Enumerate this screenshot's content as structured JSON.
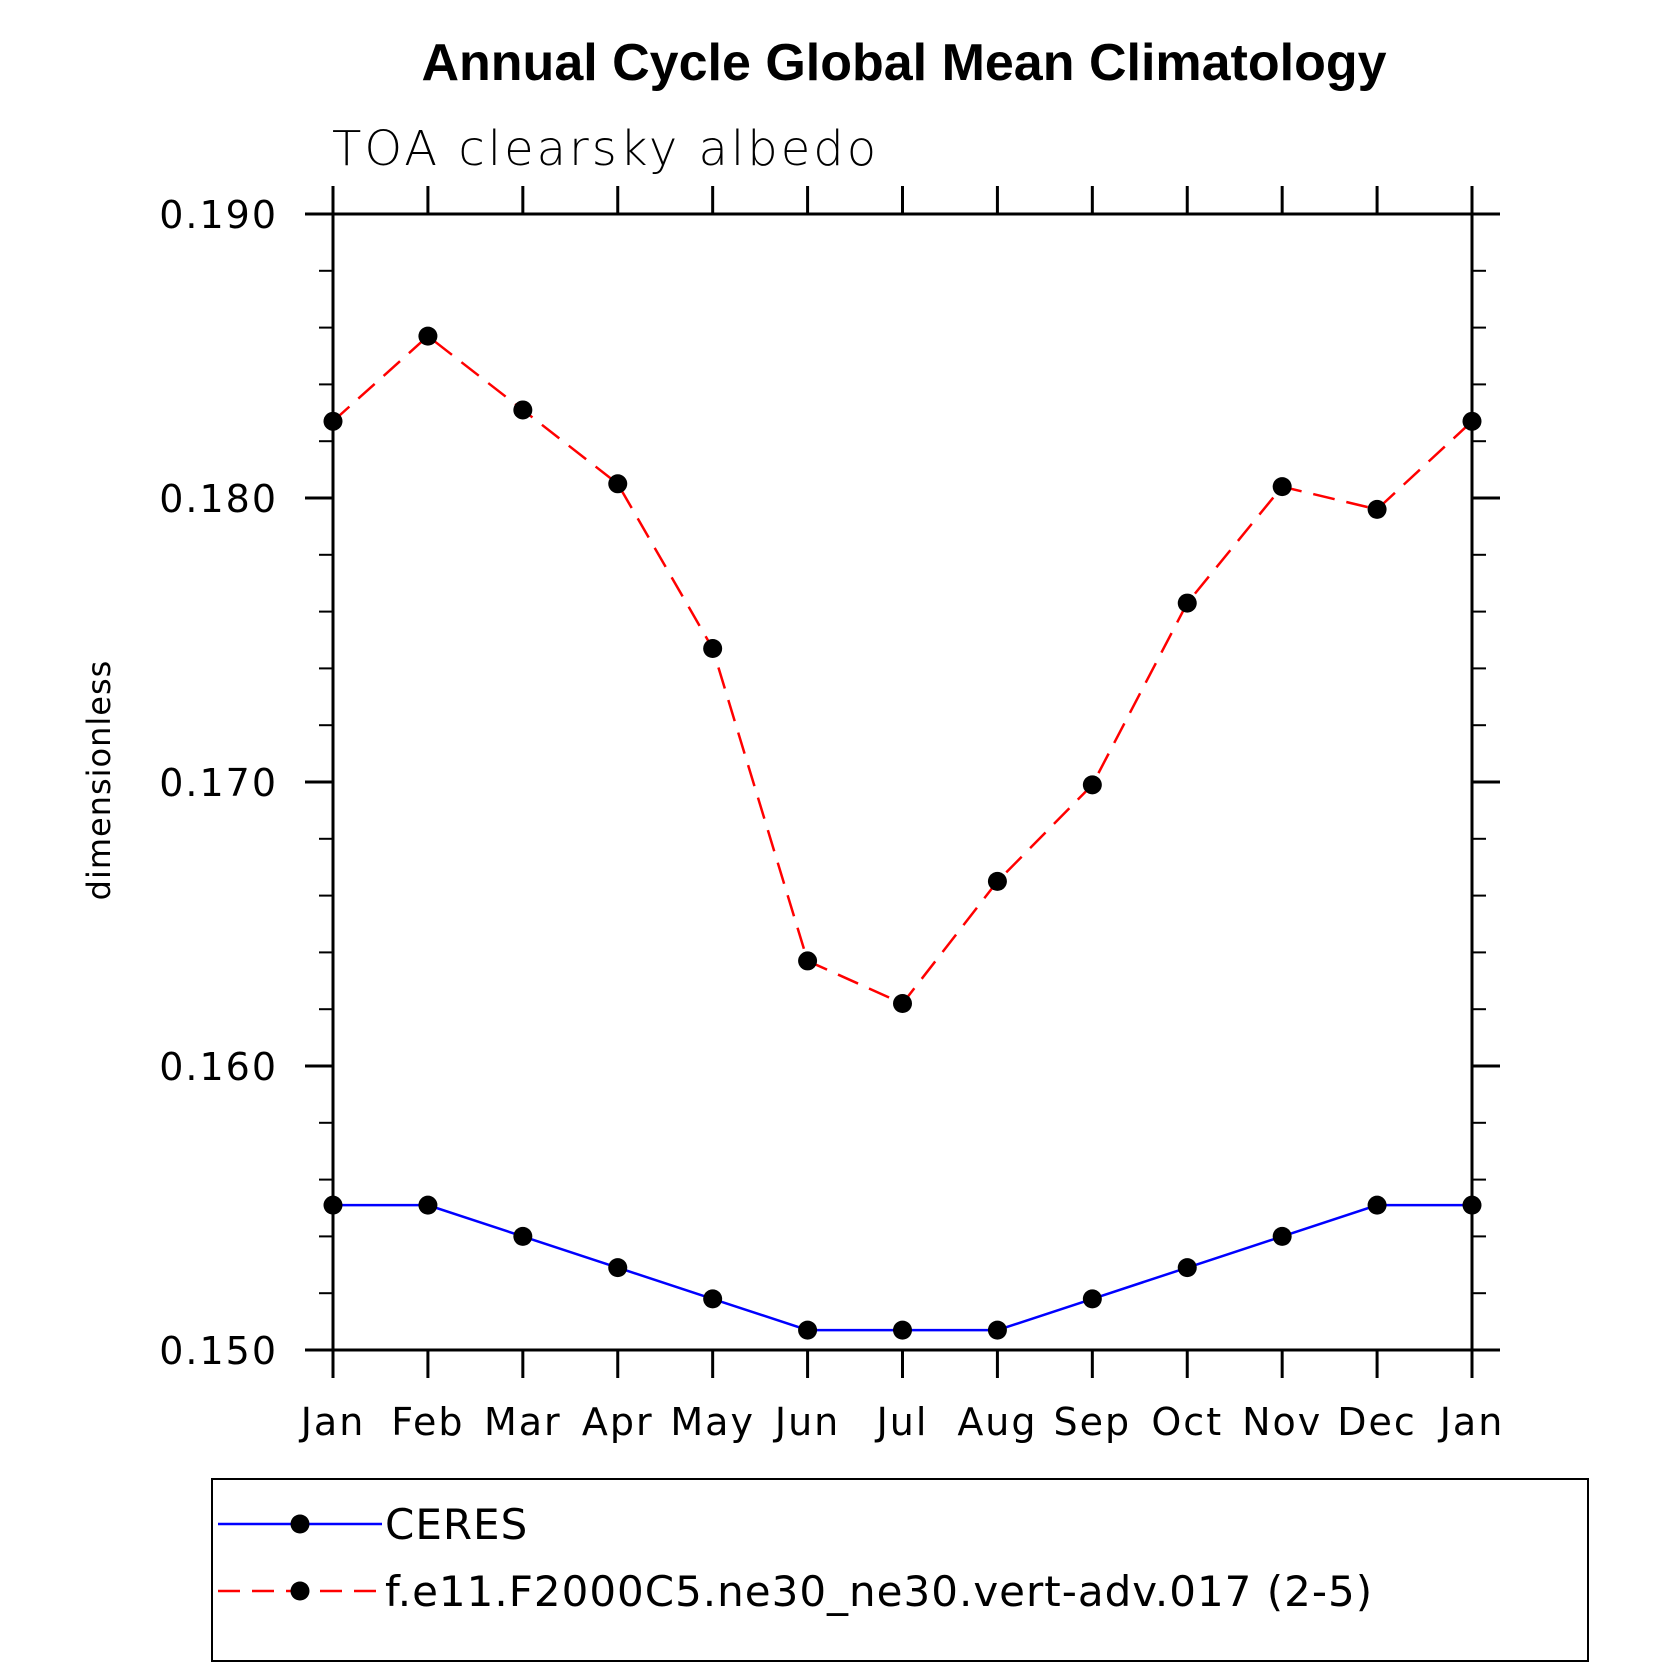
{
  "chart_data": {
    "type": "line",
    "title": "Annual Cycle Global Mean Climatology",
    "subtitle": "TOA clearsky albedo",
    "xlabel": "",
    "ylabel": "dimensionless",
    "categories": [
      "Jan",
      "Feb",
      "Mar",
      "Apr",
      "May",
      "Jun",
      "Jul",
      "Aug",
      "Sep",
      "Oct",
      "Nov",
      "Dec",
      "Jan"
    ],
    "ylim": [
      0.15,
      0.19
    ],
    "yticks": [
      0.15,
      0.16,
      0.17,
      0.18,
      0.19
    ],
    "ytick_labels": [
      "0.150",
      "0.160",
      "0.170",
      "0.180",
      "0.190"
    ],
    "grid": false,
    "legend_placement": "bottom",
    "series": [
      {
        "name": "CERES",
        "color": "#0000ff",
        "dash": "solid",
        "marker": "filled-circle",
        "values": [
          0.1551,
          0.1551,
          0.154,
          0.1529,
          0.1518,
          0.1507,
          0.1507,
          0.1507,
          0.1518,
          0.1529,
          0.154,
          0.1551,
          0.1551
        ]
      },
      {
        "name": "f.e11.F2000C5.ne30_ne30.vert-adv.017 (2-5)",
        "color": "#ff0000",
        "dash": "dashed",
        "marker": "filled-circle",
        "values": [
          0.1827,
          0.1857,
          0.1831,
          0.1805,
          0.1747,
          0.1637,
          0.1622,
          0.1665,
          0.1699,
          0.1763,
          0.1804,
          0.1796,
          0.1827
        ]
      }
    ]
  }
}
